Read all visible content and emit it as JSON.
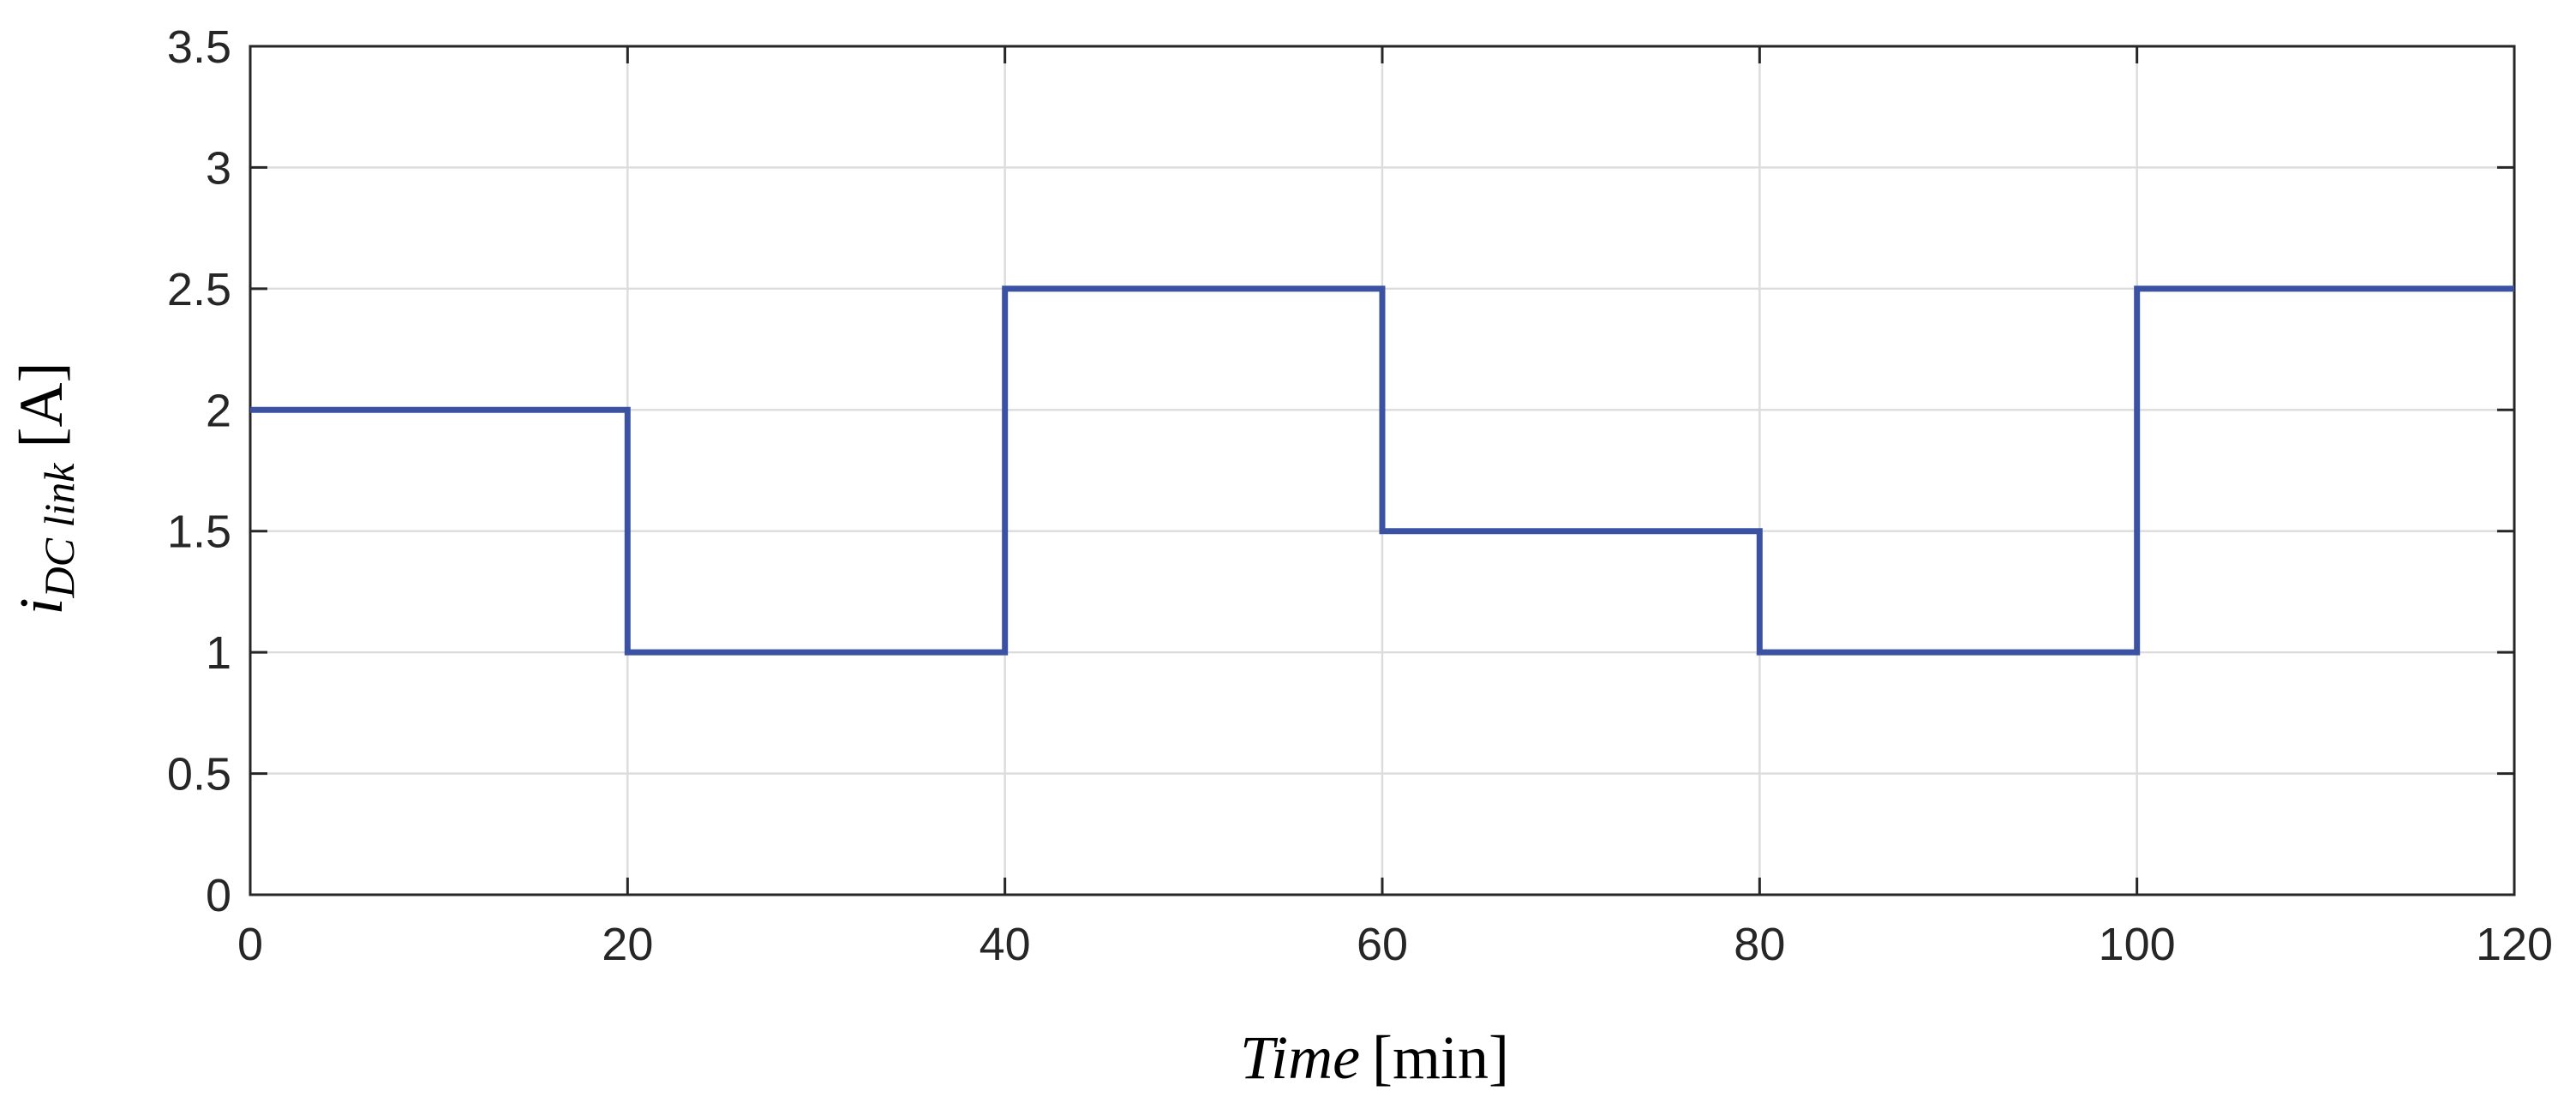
{
  "chart_data": {
    "type": "line",
    "step": true,
    "x": [
      0,
      20,
      20,
      40,
      40,
      60,
      60,
      80,
      80,
      100,
      100,
      120
    ],
    "series": [
      {
        "values": [
          2,
          2,
          1,
          1,
          2.5,
          2.5,
          1.5,
          1.5,
          1,
          1,
          2.5,
          2.5
        ],
        "color": "#3b52a3"
      }
    ],
    "xlim": [
      0,
      120
    ],
    "ylim": [
      0,
      3.5
    ],
    "xticks": [
      0,
      20,
      40,
      60,
      80,
      100,
      120
    ],
    "xtick_labels": [
      "0",
      "20",
      "40",
      "60",
      "80",
      "100",
      "120"
    ],
    "yticks": [
      0,
      0.5,
      1,
      1.5,
      2,
      2.5,
      3,
      3.5
    ],
    "ytick_labels": [
      "0",
      "0.5",
      "1",
      "1.5",
      "2",
      "2.5",
      "3",
      "3.5"
    ],
    "xlabel": {
      "name": "Time",
      "unit": "[min]"
    },
    "ylabel": {
      "symbol": "i",
      "subscript": "DC link",
      "unit": "[A]"
    },
    "grid": true
  }
}
